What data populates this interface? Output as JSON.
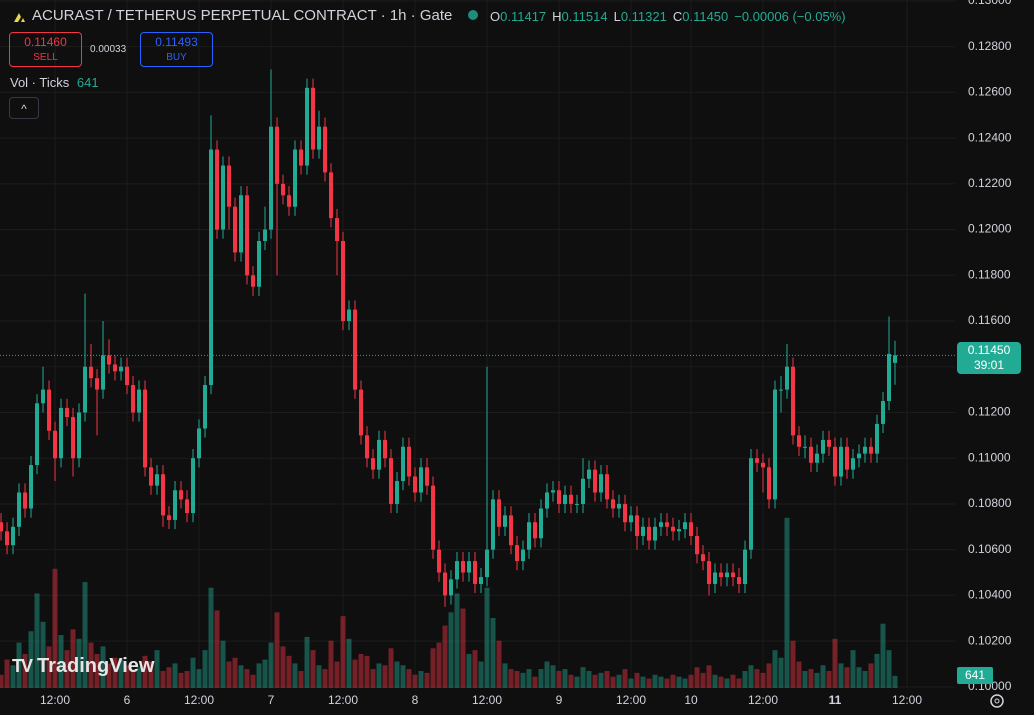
{
  "header": {
    "title": "ACURAST / TETHERUS PERPETUAL CONTRACT · 1h · Gate",
    "ohlc": [
      {
        "key": "O",
        "value": "0.11417"
      },
      {
        "key": "H",
        "value": "0.11514"
      },
      {
        "key": "L",
        "value": "0.11321"
      },
      {
        "key": "C",
        "value": "0.11450"
      }
    ],
    "change": "−0.00006 (−0.05%)",
    "sell_price": "0.11460",
    "sell_label": "SELL",
    "spread": "0.00033",
    "buy_price": "0.11493",
    "buy_label": "BUY",
    "volume_label": "Vol · Ticks",
    "countdown": "39:01",
    "logo": "TradingView"
  },
  "chart_data": {
    "type": "candlestick",
    "open": [
      0.1072,
      0.1068,
      0.1062,
      0.107,
      0.1085,
      0.1078,
      0.1097,
      0.1124,
      0.113,
      0.1112,
      0.11,
      0.1122,
      0.1118,
      0.11,
      0.112,
      0.114,
      0.1135,
      0.113,
      0.1145,
      0.1141,
      0.1138,
      0.114,
      0.1132,
      0.112,
      0.113,
      0.1096,
      0.1088,
      0.1093,
      0.1075,
      0.1073,
      0.1086,
      0.1082,
      0.1076,
      0.11,
      0.1113,
      0.1132,
      0.1235,
      0.12,
      0.1228,
      0.121,
      0.119,
      0.1215,
      0.118,
      0.1175,
      0.1195,
      0.12,
      0.1245,
      0.122,
      0.1215,
      0.121,
      0.1235,
      0.1228,
      0.1262,
      0.1235,
      0.1245,
      0.1225,
      0.1205,
      0.1195,
      0.116,
      0.1165,
      0.113,
      0.111,
      0.11,
      0.1095,
      0.1108,
      0.11,
      0.108,
      0.109,
      0.1105,
      0.1092,
      0.1085,
      0.1096,
      0.1088,
      0.106,
      0.105,
      0.104,
      0.1047,
      0.1055,
      0.105,
      0.1055,
      0.1045,
      0.1048,
      0.106,
      0.1082,
      0.107,
      0.1075,
      0.1062,
      0.1055,
      0.106,
      0.1072,
      0.1065,
      0.1078,
      0.1085,
      0.1086,
      0.108,
      0.1084,
      0.108,
      0.108,
      0.1091,
      0.1095,
      0.1085,
      0.1093,
      0.1082,
      0.1078,
      0.108,
      0.1072,
      0.1075,
      0.1066,
      0.107,
      0.1064,
      0.107,
      0.1072,
      0.107,
      0.1068,
      0.1069,
      0.1072,
      0.1066,
      0.1058,
      0.1055,
      0.1045,
      0.105,
      0.1048,
      0.105,
      0.1048,
      0.1045,
      0.106,
      0.11,
      0.1098,
      0.1096,
      0.1082,
      0.113,
      0.113,
      0.114,
      0.111,
      0.1105,
      0.1105,
      0.1098,
      0.1102,
      0.1108,
      0.1105,
      0.1092,
      0.1105,
      0.1095,
      0.11,
      0.1102,
      0.1105,
      0.1102,
      0.1115,
      0.1125,
      0.11417
    ],
    "high": [
      0.1076,
      0.1072,
      0.1074,
      0.1089,
      0.1089,
      0.1101,
      0.1128,
      0.114,
      0.1134,
      0.1116,
      0.1126,
      0.1126,
      0.1122,
      0.1124,
      0.1172,
      0.115,
      0.1139,
      0.116,
      0.1152,
      0.1145,
      0.1144,
      0.1144,
      0.1136,
      0.1134,
      0.1134,
      0.11,
      0.1097,
      0.1097,
      0.1079,
      0.109,
      0.109,
      0.1086,
      0.1104,
      0.1117,
      0.1136,
      0.125,
      0.1239,
      0.1232,
      0.1232,
      0.1214,
      0.1219,
      0.1219,
      0.1184,
      0.1199,
      0.121,
      0.127,
      0.1249,
      0.1224,
      0.1219,
      0.1239,
      0.1239,
      0.1266,
      0.1266,
      0.1252,
      0.1249,
      0.1229,
      0.1209,
      0.1199,
      0.1169,
      0.1169,
      0.1134,
      0.1114,
      0.1104,
      0.1112,
      0.1112,
      0.1104,
      0.1094,
      0.1109,
      0.1109,
      0.1096,
      0.11,
      0.11,
      0.1092,
      0.1064,
      0.1054,
      0.1051,
      0.1059,
      0.1059,
      0.1059,
      0.1059,
      0.1052,
      0.114,
      0.1086,
      0.1086,
      0.1079,
      0.1079,
      0.1066,
      0.1064,
      0.1076,
      0.1076,
      0.1082,
      0.1089,
      0.109,
      0.109,
      0.1088,
      0.1088,
      0.1084,
      0.11,
      0.1099,
      0.1099,
      0.1097,
      0.1097,
      0.1086,
      0.1084,
      0.1084,
      0.1079,
      0.1079,
      0.1074,
      0.1074,
      0.1074,
      0.1076,
      0.1076,
      0.1074,
      0.1073,
      0.1076,
      0.1076,
      0.107,
      0.1062,
      0.1059,
      0.1054,
      0.1054,
      0.1054,
      0.1054,
      0.1052,
      0.1064,
      0.1104,
      0.1104,
      0.1102,
      0.11,
      0.1134,
      0.1136,
      0.115,
      0.1144,
      0.1114,
      0.111,
      0.1109,
      0.1106,
      0.1112,
      0.1112,
      0.1109,
      0.1109,
      0.1109,
      0.1104,
      0.1106,
      0.1109,
      0.1109,
      0.1119,
      0.1129,
      0.1162,
      0.11514
    ],
    "low": [
      0.1064,
      0.1058,
      0.1058,
      0.1066,
      0.1074,
      0.1074,
      0.1093,
      0.112,
      0.1108,
      0.109,
      0.1096,
      0.1114,
      0.1092,
      0.1096,
      0.1116,
      0.1131,
      0.111,
      0.1126,
      0.1137,
      0.1134,
      0.1134,
      0.1128,
      0.1116,
      0.1116,
      0.1092,
      0.1084,
      0.1084,
      0.107,
      0.1069,
      0.1069,
      0.1078,
      0.1072,
      0.1072,
      0.1096,
      0.1109,
      0.1128,
      0.1196,
      0.1196,
      0.12,
      0.1186,
      0.1186,
      0.1176,
      0.1171,
      0.1171,
      0.1191,
      0.1196,
      0.118,
      0.1211,
      0.1206,
      0.1206,
      0.1224,
      0.1224,
      0.1231,
      0.1231,
      0.1221,
      0.1201,
      0.118,
      0.1156,
      0.1156,
      0.1126,
      0.1106,
      0.1096,
      0.1091,
      0.1091,
      0.1096,
      0.1076,
      0.1076,
      0.1086,
      0.1088,
      0.1081,
      0.1081,
      0.1084,
      0.1056,
      0.1046,
      0.1035,
      0.1036,
      0.1043,
      0.1046,
      0.1046,
      0.1041,
      0.1041,
      0.1044,
      0.1056,
      0.1066,
      0.1066,
      0.1058,
      0.1051,
      0.1051,
      0.1056,
      0.1061,
      0.1061,
      0.1074,
      0.1081,
      0.1076,
      0.1076,
      0.1076,
      0.1076,
      0.1076,
      0.1087,
      0.1081,
      0.1081,
      0.1078,
      0.1074,
      0.1074,
      0.1068,
      0.1068,
      0.106,
      0.1062,
      0.106,
      0.106,
      0.1066,
      0.1066,
      0.1064,
      0.1064,
      0.1065,
      0.1062,
      0.1054,
      0.1051,
      0.104,
      0.1041,
      0.1044,
      0.1044,
      0.1044,
      0.1041,
      0.1041,
      0.1056,
      0.1094,
      0.1085,
      0.1078,
      0.1078,
      0.112,
      0.1126,
      0.1106,
      0.1101,
      0.11,
      0.1094,
      0.1094,
      0.1098,
      0.1101,
      0.1088,
      0.1088,
      0.1091,
      0.1091,
      0.1096,
      0.1098,
      0.1098,
      0.1098,
      0.1111,
      0.1121,
      0.11321
    ],
    "close": [
      0.1068,
      0.1062,
      0.107,
      0.1085,
      0.1078,
      0.1097,
      0.1124,
      0.113,
      0.1112,
      0.11,
      0.1122,
      0.1118,
      0.11,
      0.112,
      0.114,
      0.1135,
      0.113,
      0.1145,
      0.1141,
      0.1138,
      0.114,
      0.1132,
      0.112,
      0.113,
      0.1096,
      0.1088,
      0.1093,
      0.1075,
      0.1073,
      0.1086,
      0.1082,
      0.1076,
      0.11,
      0.1113,
      0.1132,
      0.1235,
      0.12,
      0.1228,
      0.121,
      0.119,
      0.1215,
      0.118,
      0.1175,
      0.1195,
      0.12,
      0.1245,
      0.122,
      0.1215,
      0.121,
      0.1235,
      0.1228,
      0.1262,
      0.1235,
      0.1245,
      0.1225,
      0.1205,
      0.1195,
      0.116,
      0.1165,
      0.113,
      0.111,
      0.11,
      0.1095,
      0.1108,
      0.11,
      0.108,
      0.109,
      0.1105,
      0.1092,
      0.1085,
      0.1096,
      0.1088,
      0.106,
      0.105,
      0.104,
      0.1047,
      0.1055,
      0.105,
      0.1055,
      0.1045,
      0.1048,
      0.106,
      0.1082,
      0.107,
      0.1075,
      0.1062,
      0.1055,
      0.106,
      0.1072,
      0.1065,
      0.1078,
      0.1085,
      0.1086,
      0.108,
      0.1084,
      0.108,
      0.108,
      0.1091,
      0.1095,
      0.1085,
      0.1093,
      0.1082,
      0.1078,
      0.108,
      0.1072,
      0.1075,
      0.1066,
      0.107,
      0.1064,
      0.107,
      0.1072,
      0.107,
      0.1068,
      0.1069,
      0.1072,
      0.1066,
      0.1058,
      0.1055,
      0.1045,
      0.105,
      0.1048,
      0.105,
      0.1048,
      0.1045,
      0.106,
      0.11,
      0.1098,
      0.1096,
      0.1082,
      0.113,
      0.113,
      0.114,
      0.111,
      0.1105,
      0.1105,
      0.1098,
      0.1102,
      0.1108,
      0.1105,
      0.1092,
      0.1105,
      0.1095,
      0.11,
      0.1102,
      0.1105,
      0.1102,
      0.1115,
      0.1125,
      0.11456,
      0.1145
    ],
    "volume": [
      700,
      1500,
      1200,
      2400,
      1800,
      3000,
      5000,
      3500,
      2200,
      6300,
      2800,
      2000,
      3100,
      2600,
      5600,
      2400,
      1800,
      2200,
      1300,
      1600,
      1500,
      1200,
      1000,
      1100,
      1700,
      1400,
      2000,
      900,
      1100,
      1300,
      800,
      900,
      1600,
      1000,
      2000,
      5300,
      4100,
      2500,
      1400,
      1600,
      1200,
      1000,
      700,
      1300,
      1500,
      2400,
      4000,
      2200,
      1700,
      1300,
      900,
      2700,
      2000,
      1200,
      1000,
      2500,
      1400,
      3800,
      2600,
      1500,
      1800,
      1700,
      1000,
      1300,
      1200,
      2100,
      1400,
      1200,
      1000,
      700,
      900,
      800,
      2100,
      2400,
      3300,
      4000,
      5000,
      4200,
      1800,
      2000,
      1400,
      5300,
      3700,
      2500,
      1300,
      1000,
      900,
      800,
      1000,
      600,
      1000,
      1400,
      1200,
      900,
      1000,
      700,
      600,
      1100,
      900,
      700,
      800,
      900,
      600,
      700,
      1000,
      500,
      800,
      600,
      500,
      700,
      600,
      500,
      700,
      600,
      500,
      700,
      1100,
      800,
      1200,
      700,
      600,
      500,
      700,
      500,
      900,
      1200,
      1000,
      800,
      1300,
      2000,
      1600,
      9000,
      2500,
      1400,
      900,
      1000,
      800,
      1200,
      900,
      2600,
      1300,
      1100,
      2000,
      1100,
      900,
      1300,
      1800,
      3400,
      2000,
      641
    ],
    "up_color": "#22ab94",
    "down_color": "#f23645",
    "ylim": [
      0.09995,
      0.13004
    ],
    "yticks": [
      {
        "value": 0.1,
        "label": "0.10000"
      },
      {
        "value": 0.102,
        "label": "0.10200"
      },
      {
        "value": 0.104,
        "label": "0.10400"
      },
      {
        "value": 0.106,
        "label": "0.10600"
      },
      {
        "value": 0.108,
        "label": "0.10800"
      },
      {
        "value": 0.11,
        "label": "0.11000"
      },
      {
        "value": 0.112,
        "label": "0.11200"
      },
      {
        "value": 0.114,
        "label": "0.11400"
      },
      {
        "value": 0.116,
        "label": "0.11600"
      },
      {
        "value": 0.118,
        "label": "0.11800"
      },
      {
        "value": 0.12,
        "label": "0.12000"
      },
      {
        "value": 0.122,
        "label": "0.12200"
      },
      {
        "value": 0.124,
        "label": "0.12400"
      },
      {
        "value": 0.126,
        "label": "0.12600"
      },
      {
        "value": 0.128,
        "label": "0.12800"
      },
      {
        "value": 0.13,
        "label": "0.13000"
      }
    ],
    "xlim": [
      -0.17,
      159
    ],
    "xticks": [
      {
        "value": 9,
        "label": "12:00"
      },
      {
        "value": 21,
        "label": "6"
      },
      {
        "value": 33,
        "label": "12:00"
      },
      {
        "value": 45,
        "label": "7"
      },
      {
        "value": 57,
        "label": "12:00"
      },
      {
        "value": 69,
        "label": "8"
      },
      {
        "value": 81,
        "label": "12:00"
      },
      {
        "value": 93,
        "label": "9"
      },
      {
        "value": 105,
        "label": "12:00"
      },
      {
        "value": 115,
        "label": "10"
      },
      {
        "value": 127,
        "label": "12:00"
      },
      {
        "value": 139,
        "label": "11"
      },
      {
        "value": 151,
        "label": "12:00"
      }
    ],
    "vlim": [
      0,
      12000
    ],
    "grid": true
  }
}
